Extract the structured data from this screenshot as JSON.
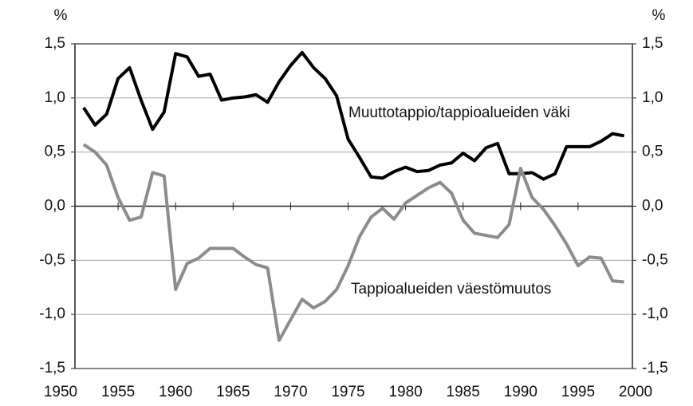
{
  "chart_data": {
    "type": "line",
    "y_unit": "%",
    "y2_unit": "%",
    "x": [
      1952,
      1953,
      1954,
      1955,
      1956,
      1957,
      1958,
      1959,
      1960,
      1961,
      1962,
      1963,
      1964,
      1965,
      1966,
      1967,
      1968,
      1969,
      1970,
      1971,
      1972,
      1973,
      1974,
      1975,
      1976,
      1977,
      1978,
      1979,
      1980,
      1981,
      1982,
      1983,
      1984,
      1985,
      1986,
      1987,
      1988,
      1989,
      1990,
      1991,
      1992,
      1993,
      1994,
      1995,
      1996,
      1997,
      1998,
      1999
    ],
    "series": [
      {
        "name": "Muuttotappio/tappioalueiden väki",
        "color": "#000000",
        "values": [
          0.91,
          0.75,
          0.85,
          1.18,
          1.28,
          0.98,
          0.71,
          0.87,
          1.41,
          1.38,
          1.2,
          1.22,
          0.98,
          1.0,
          1.01,
          1.03,
          0.96,
          1.15,
          1.3,
          1.42,
          1.28,
          1.18,
          1.02,
          0.62,
          0.45,
          0.27,
          0.26,
          0.32,
          0.36,
          0.32,
          0.33,
          0.38,
          0.4,
          0.49,
          0.42,
          0.54,
          0.58,
          0.3,
          0.3,
          0.31,
          0.25,
          0.3,
          0.55,
          0.55,
          0.55,
          0.6,
          0.67,
          0.65
        ]
      },
      {
        "name": "Tappioalueiden väestömuutos",
        "color": "#8c8c8c",
        "values": [
          0.57,
          0.5,
          0.38,
          0.08,
          -0.13,
          -0.1,
          0.31,
          0.28,
          -0.77,
          -0.53,
          -0.48,
          -0.39,
          -0.39,
          -0.39,
          -0.47,
          -0.54,
          -0.57,
          -1.24,
          -1.05,
          -0.86,
          -0.94,
          -0.88,
          -0.77,
          -0.55,
          -0.28,
          -0.1,
          -0.02,
          -0.12,
          0.03,
          0.1,
          0.17,
          0.22,
          0.12,
          -0.13,
          -0.25,
          -0.27,
          -0.29,
          -0.17,
          0.35,
          0.08,
          -0.03,
          -0.18,
          -0.35,
          -0.55,
          -0.47,
          -0.48,
          -0.69,
          -0.7
        ]
      }
    ],
    "xlim": [
      1950,
      2000
    ],
    "xticks": [
      1950,
      1955,
      1960,
      1965,
      1970,
      1975,
      1980,
      1985,
      1990,
      1995,
      2000
    ],
    "ylim": [
      -1.5,
      1.5
    ],
    "yticks": [
      {
        "value": -1.5,
        "label": "-1,5"
      },
      {
        "value": -1,
        "label": "-1,0"
      },
      {
        "value": -0.5,
        "label": "-0,5"
      },
      {
        "value": 0,
        "label": "0,0"
      },
      {
        "value": 0.5,
        "label": "0,5"
      },
      {
        "value": 1,
        "label": "1,0"
      },
      {
        "value": 1.5,
        "label": "1,5"
      }
    ],
    "y2lim": [
      -1.5,
      1.5
    ],
    "y2ticks": [
      {
        "value": -1.5,
        "label": "-1,5"
      },
      {
        "value": -1,
        "label": "-1,0"
      },
      {
        "value": -0.5,
        "label": "-0,5"
      },
      {
        "value": 0,
        "label": "0,0"
      },
      {
        "value": 0.5,
        "label": "0,5"
      },
      {
        "value": 1,
        "label": "1,0"
      },
      {
        "value": 1.5,
        "label": "1,5"
      }
    ],
    "grid": true
  }
}
